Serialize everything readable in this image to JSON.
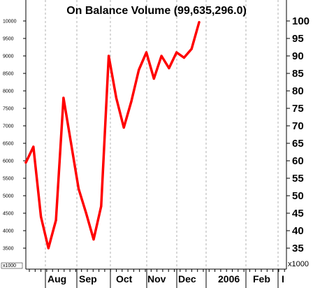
{
  "chart_data": {
    "type": "line",
    "title": "On Balance Volume (99,635,296.0)",
    "right_axis_multiplier": "x1000",
    "left_axis_multiplier": "x1000",
    "y_right_ticks": [
      "100",
      "95",
      "90",
      "85",
      "80",
      "75",
      "70",
      "65",
      "60",
      "55",
      "50",
      "45",
      "40",
      "35"
    ],
    "y_left_ticks": [
      "10000",
      "9500",
      "9000",
      "8500",
      "8000",
      "7500",
      "7000",
      "6500",
      "6000",
      "5500",
      "5000",
      "4500",
      "4000",
      "3500"
    ],
    "ylim": [
      32000,
      102000
    ],
    "x_labels": [
      "Aug",
      "Sep",
      "Oct",
      "Nov",
      "Dec",
      "2006",
      "Feb",
      "I"
    ],
    "series": [
      {
        "color": "#ff0000",
        "values": [
          59500,
          64000,
          44000,
          35000,
          43000,
          78000,
          65000,
          52000,
          45000,
          37500,
          47000,
          90000,
          78000,
          69500,
          77000,
          86000,
          91000,
          83500,
          90000,
          86500,
          91000,
          89500,
          92000,
          99635
        ]
      }
    ],
    "grid": "vertical dashed",
    "line_color": "#ff0000"
  }
}
